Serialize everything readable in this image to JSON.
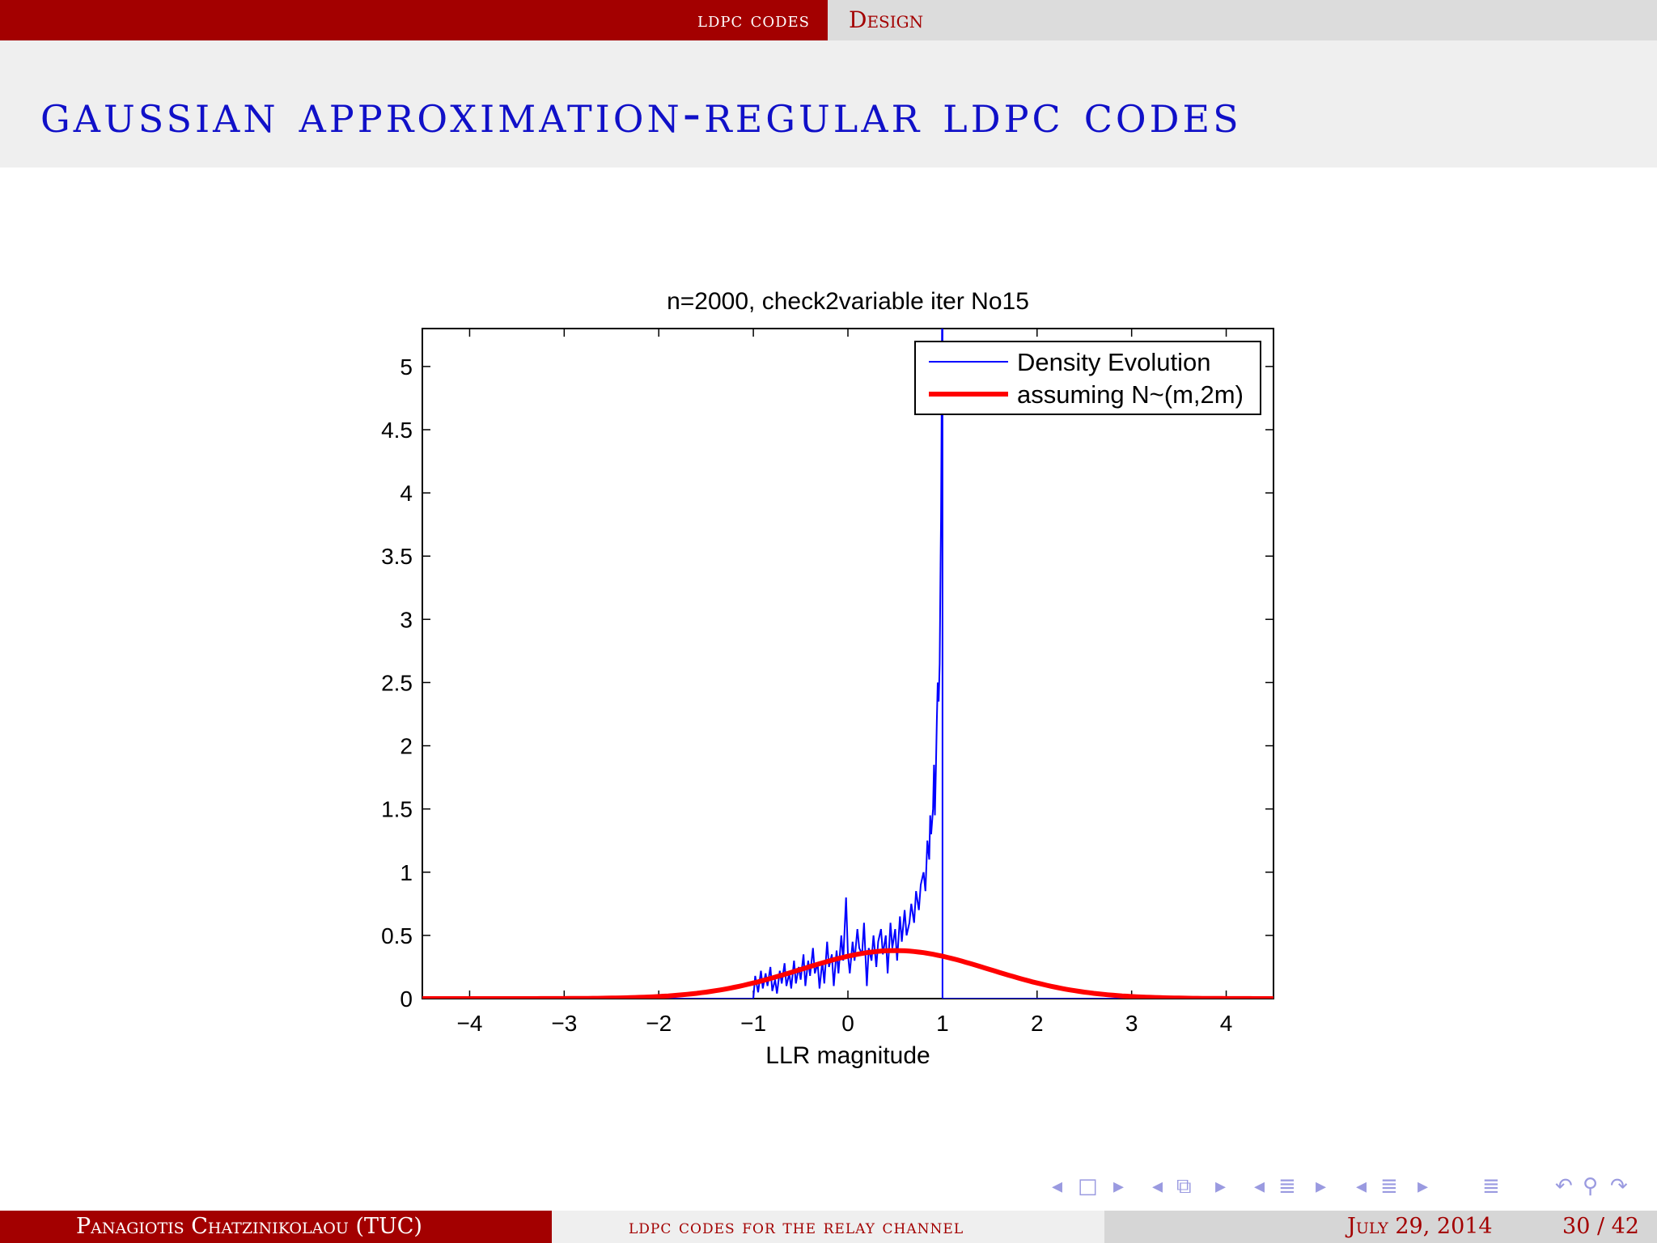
{
  "header": {
    "section": "ldpc codes",
    "subsection": "Design"
  },
  "slide": {
    "title": "gaussian approximation-regular ldpc codes"
  },
  "footer": {
    "author": "Panagiotis Chatzinikolaou  (TUC)",
    "short_title": "ldpc codes for the relay channel",
    "date": "July 29, 2014",
    "page": "30 / 42"
  },
  "colors": {
    "accent": "#a30000",
    "title": "#1010c8",
    "density_evolution": "#0000ff",
    "gaussian": "#ff0000"
  },
  "nav_icons": [
    "frame-prev-icon",
    "frame-icon",
    "frame-next-icon",
    "subsection-prev-icon",
    "subsection-icon",
    "subsection-next-icon",
    "section-prev-icon",
    "section-icon",
    "section-next-icon",
    "subsection-list-prev-icon",
    "subsection-list-icon",
    "subsection-list-next-icon",
    "toc-icon",
    "undo-icon",
    "search-icon",
    "redo-icon"
  ],
  "chart_data": {
    "type": "line",
    "title": "n=2000, check2variable iter No15",
    "xlabel": "LLR magnitude",
    "ylabel": "",
    "xlim": [
      -4.5,
      4.5
    ],
    "ylim": [
      0,
      5.3
    ],
    "xticks": [
      -4,
      -3,
      -2,
      -1,
      0,
      1,
      2,
      3,
      4
    ],
    "xtick_labels": [
      "−4",
      "−3",
      "−2",
      "−1",
      "0",
      "1",
      "2",
      "3",
      "4"
    ],
    "yticks": [
      0,
      0.5,
      1,
      1.5,
      2,
      2.5,
      3,
      3.5,
      4,
      4.5,
      5
    ],
    "ytick_labels": [
      "0",
      "0.5",
      "1",
      "1.5",
      "2",
      "2.5",
      "3",
      "3.5",
      "4",
      "4.5",
      "5"
    ],
    "legend_position": "top-right",
    "series": [
      {
        "name": "Density Evolution",
        "color": "#0000ff",
        "x": [
          -4.5,
          -1.0,
          -0.98,
          -0.95,
          -0.92,
          -0.9,
          -0.87,
          -0.85,
          -0.82,
          -0.8,
          -0.77,
          -0.75,
          -0.72,
          -0.7,
          -0.67,
          -0.65,
          -0.62,
          -0.6,
          -0.57,
          -0.55,
          -0.52,
          -0.5,
          -0.47,
          -0.45,
          -0.42,
          -0.4,
          -0.37,
          -0.35,
          -0.32,
          -0.3,
          -0.27,
          -0.25,
          -0.22,
          -0.2,
          -0.17,
          -0.15,
          -0.12,
          -0.1,
          -0.07,
          -0.05,
          -0.02,
          0.0,
          0.02,
          0.05,
          0.07,
          0.1,
          0.12,
          0.15,
          0.17,
          0.2,
          0.22,
          0.25,
          0.27,
          0.3,
          0.32,
          0.35,
          0.37,
          0.4,
          0.42,
          0.45,
          0.47,
          0.5,
          0.52,
          0.55,
          0.57,
          0.6,
          0.62,
          0.65,
          0.67,
          0.7,
          0.72,
          0.75,
          0.77,
          0.8,
          0.82,
          0.84,
          0.86,
          0.87,
          0.88,
          0.9,
          0.91,
          0.92,
          0.93,
          0.94,
          0.95,
          0.96,
          0.97,
          0.98,
          0.985,
          0.99,
          0.995,
          1.0,
          1.0,
          1.01,
          4.5
        ],
        "y": [
          0,
          0,
          0.18,
          0.05,
          0.22,
          0.08,
          0.2,
          0.1,
          0.25,
          0.06,
          0.15,
          0.04,
          0.22,
          0.12,
          0.28,
          0.1,
          0.2,
          0.08,
          0.3,
          0.12,
          0.25,
          0.15,
          0.35,
          0.1,
          0.3,
          0.18,
          0.4,
          0.2,
          0.28,
          0.08,
          0.3,
          0.12,
          0.45,
          0.25,
          0.35,
          0.1,
          0.38,
          0.2,
          0.5,
          0.3,
          0.8,
          0.35,
          0.2,
          0.45,
          0.3,
          0.55,
          0.4,
          0.35,
          0.6,
          0.1,
          0.4,
          0.3,
          0.5,
          0.25,
          0.45,
          0.55,
          0.35,
          0.5,
          0.2,
          0.6,
          0.4,
          0.55,
          0.3,
          0.65,
          0.45,
          0.7,
          0.5,
          0.6,
          0.75,
          0.6,
          0.85,
          0.7,
          0.9,
          1.0,
          0.85,
          1.25,
          1.1,
          1.45,
          1.3,
          1.5,
          1.85,
          1.45,
          1.8,
          2.2,
          2.5,
          2.35,
          2.65,
          3.5,
          3.8,
          4.5,
          5.3,
          5.3,
          0,
          0,
          0
        ]
      },
      {
        "name": "assuming N~(m,2m)",
        "color": "#ff0000",
        "mean": 0.5,
        "variance": 1.0,
        "peak": 0.38
      }
    ]
  }
}
